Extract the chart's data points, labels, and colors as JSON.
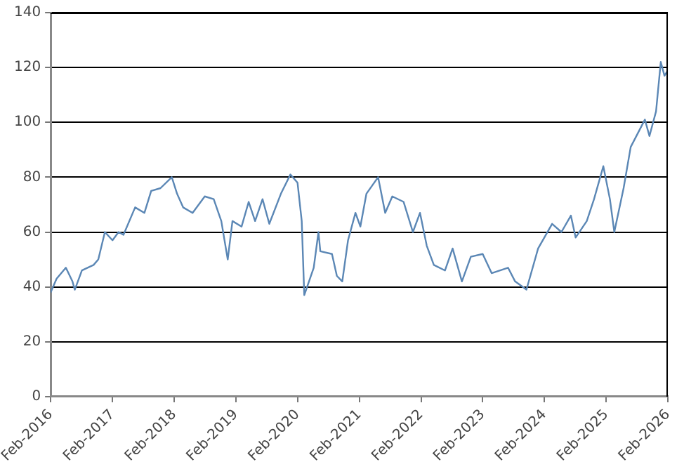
{
  "chart_data": {
    "type": "line",
    "grid": "y",
    "marker": "none",
    "line_style": "solid",
    "xlim": [
      "2016-02",
      "2026-02"
    ],
    "ylim": [
      0,
      140
    ],
    "yticks": [
      0,
      20,
      40,
      60,
      80,
      100,
      120,
      140
    ],
    "xticks": [
      {
        "value": "2016-02",
        "label": "Feb-2016"
      },
      {
        "value": "2017-02",
        "label": "Feb-2017"
      },
      {
        "value": "2018-02",
        "label": "Feb-2018"
      },
      {
        "value": "2019-02",
        "label": "Feb-2019"
      },
      {
        "value": "2020-02",
        "label": "Feb-2020"
      },
      {
        "value": "2021-02",
        "label": "Feb-2021"
      },
      {
        "value": "2022-02",
        "label": "Feb-2022"
      },
      {
        "value": "2023-02",
        "label": "Feb-2023"
      },
      {
        "value": "2024-02",
        "label": "Feb-2024"
      },
      {
        "value": "2025-02",
        "label": "Feb-2025"
      },
      {
        "value": "2026-02",
        "label": "Feb-2026"
      }
    ],
    "x": [
      "2016-02-01",
      "2016-03-07",
      "2016-05-01",
      "2016-06-09",
      "2016-06-23",
      "2016-08-04",
      "2016-10-12",
      "2016-11-09",
      "2016-12-18",
      "2017-02-01",
      "2017-03-09",
      "2017-04-07",
      "2017-06-15",
      "2017-08-09",
      "2017-09-18",
      "2017-11-12",
      "2018-01-18",
      "2018-02-18",
      "2018-03-26",
      "2018-05-21",
      "2018-08-01",
      "2018-09-23",
      "2018-11-07",
      "2018-12-15",
      "2019-01-12",
      "2019-03-07",
      "2019-04-18",
      "2019-05-26",
      "2019-07-09",
      "2019-08-18",
      "2019-10-26",
      "2019-12-21",
      "2020-02-01",
      "2020-02-26",
      "2020-03-12",
      "2020-04-09",
      "2020-05-07",
      "2020-06-04",
      "2020-06-15",
      "2020-08-23",
      "2020-09-21",
      "2020-10-23",
      "2020-11-26",
      "2021-01-09",
      "2021-02-07",
      "2021-03-15",
      "2021-05-23",
      "2021-07-04",
      "2021-08-15",
      "2021-10-21",
      "2021-12-15",
      "2022-01-26",
      "2022-03-07",
      "2022-04-18",
      "2022-06-23",
      "2022-08-07",
      "2022-10-01",
      "2022-11-23",
      "2023-02-01",
      "2023-03-26",
      "2023-07-01",
      "2023-08-12",
      "2023-10-18",
      "2023-12-26",
      "2024-03-18",
      "2024-05-12",
      "2024-07-07",
      "2024-08-04",
      "2024-10-09",
      "2024-11-21",
      "2025-01-15",
      "2025-02-23",
      "2025-03-21",
      "2025-05-15",
      "2025-06-26",
      "2025-08-07",
      "2025-09-18",
      "2025-10-15",
      "2025-11-23",
      "2025-12-21",
      "2026-01-12",
      "2026-02-01"
    ],
    "series": [
      {
        "color": "#5b87b5",
        "values": [
          38,
          43,
          47,
          42,
          39,
          46,
          48,
          50,
          60,
          57,
          60,
          59,
          69,
          67,
          75,
          76,
          80,
          74,
          69,
          67,
          73,
          72,
          64,
          50,
          64,
          62,
          71,
          64,
          72,
          63,
          74,
          81,
          78,
          64,
          37,
          42,
          47,
          60,
          53,
          52,
          44,
          42,
          57,
          67,
          62,
          74,
          80,
          67,
          73,
          71,
          60,
          67,
          55,
          48,
          46,
          54,
          42,
          51,
          52,
          45,
          47,
          42,
          39,
          54,
          63,
          60,
          66,
          58,
          64,
          72,
          84,
          72,
          60,
          76,
          91,
          96,
          101,
          95,
          104,
          122,
          117,
          119
        ]
      }
    ]
  }
}
